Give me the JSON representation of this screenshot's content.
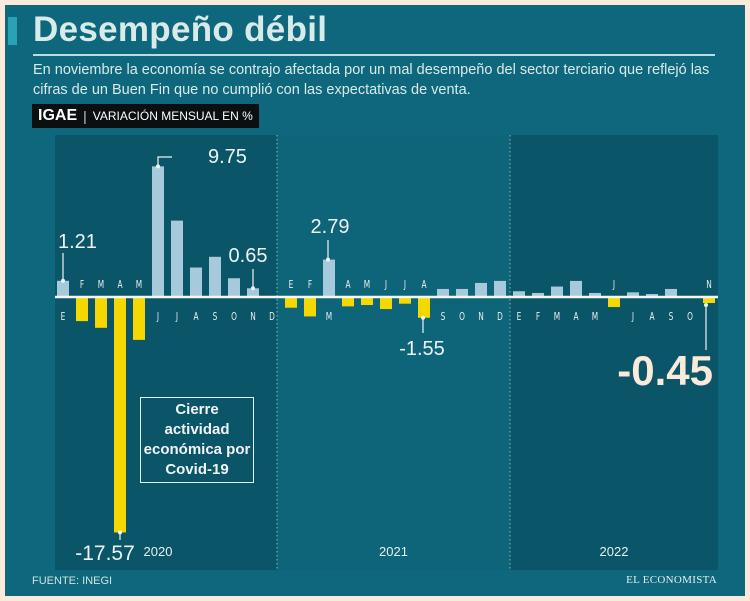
{
  "header": {
    "title": "Desempeño débil",
    "subtitle": "En noviembre la economía se contrajo afectada por un mal desempeño del sector terciario que reflejó las cifras de un Buen Fin que no cumplió con las expectativas de venta.",
    "tag_strong": "IGAE",
    "tag_sep": "|",
    "tag_text": "VARIACIÓN MENSUAL EN %"
  },
  "note": "Cierre actividad económica por Covid-19",
  "footer": {
    "source": "FUENTE: INEGI",
    "brand": "EL ECONOMISTA"
  },
  "colors": {
    "positive": "#a6cadb",
    "negative": "#f5d800",
    "background": "#0e677c",
    "frame": "#fbe9d9"
  },
  "chart_data": {
    "type": "bar",
    "title": "",
    "xlabel": "",
    "ylabel": "",
    "grid": false,
    "years": [
      "2020",
      "2021",
      "2022"
    ],
    "series": [
      {
        "year": "2020",
        "months": [
          "E",
          "F",
          "M",
          "A",
          "M",
          "J",
          "J",
          "A",
          "S",
          "O",
          "N",
          "D"
        ],
        "values": [
          1.21,
          -1.8,
          -2.3,
          -17.57,
          -3.2,
          9.75,
          5.7,
          2.2,
          3.0,
          1.4,
          0.65,
          0.0
        ]
      },
      {
        "year": "2021",
        "months": [
          "E",
          "F",
          "M",
          "A",
          "M",
          "J",
          "J",
          "A",
          "S",
          "O",
          "N",
          "D"
        ],
        "values": [
          -0.8,
          -1.45,
          2.79,
          -0.7,
          -0.6,
          -0.9,
          -0.5,
          -1.55,
          0.6,
          0.6,
          1.05,
          1.2
        ]
      },
      {
        "year": "2022",
        "months": [
          "E",
          "F",
          "M",
          "A",
          "M",
          "J",
          "J",
          "A",
          "S",
          "O",
          "N"
        ],
        "values": [
          0.43,
          0.3,
          0.78,
          1.2,
          0.3,
          -0.75,
          0.35,
          0.22,
          0.6,
          0.0,
          -0.45
        ]
      }
    ],
    "annotations": [
      {
        "year": "2020",
        "month_index": 0,
        "label": "1.21"
      },
      {
        "year": "2020",
        "month_index": 3,
        "label": "-17.57"
      },
      {
        "year": "2020",
        "month_index": 5,
        "label": "9.75"
      },
      {
        "year": "2020",
        "month_index": 10,
        "label": "0.65"
      },
      {
        "year": "2021",
        "month_index": 2,
        "label": "2.79"
      },
      {
        "year": "2021",
        "month_index": 7,
        "label": "-1.55"
      },
      {
        "year": "2022",
        "month_index": 10,
        "label": "-0.45"
      }
    ]
  }
}
